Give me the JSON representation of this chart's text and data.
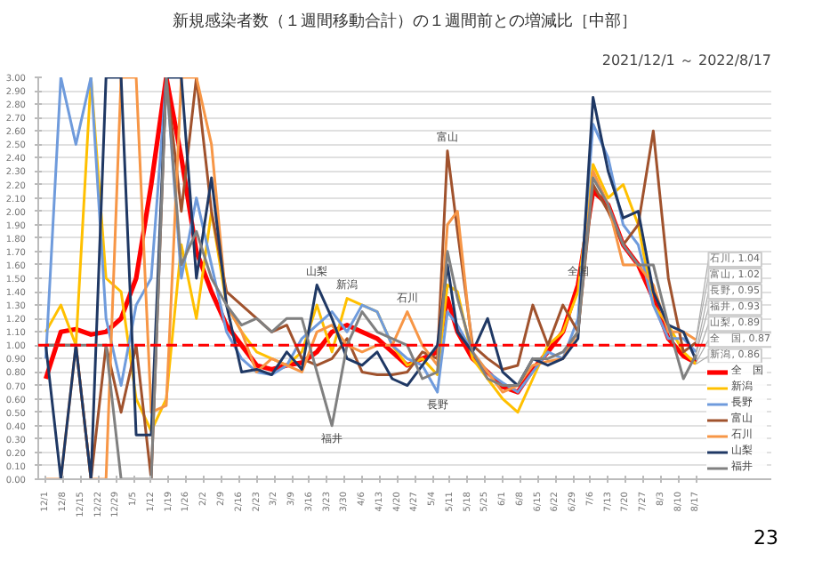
{
  "chart_data": {
    "type": "line",
    "title": "新規感染者数（１週間移動合計）の１週間前との増減比［中部］",
    "subtitle": "2021/12/1 ～ 2022/8/17",
    "x": [
      "2021-12-01",
      "2021-12-07",
      "2021-12-13",
      "2021-12-19",
      "2021-12-25",
      "2021-12-31",
      "2022-01-06",
      "2022-01-12",
      "2022-01-18",
      "2022-01-24",
      "2022-01-30",
      "2022-02-05",
      "2022-02-11",
      "2022-02-17",
      "2022-02-23",
      "2022-03-01",
      "2022-03-07",
      "2022-03-13",
      "2022-03-19",
      "2022-03-25",
      "2022-03-31",
      "2022-04-06",
      "2022-04-12",
      "2022-04-18",
      "2022-04-24",
      "2022-04-30",
      "2022-05-06",
      "2022-05-10",
      "2022-05-14",
      "2022-05-20",
      "2022-05-26",
      "2022-06-01",
      "2022-06-07",
      "2022-06-13",
      "2022-06-19",
      "2022-06-25",
      "2022-07-01",
      "2022-07-07",
      "2022-07-13",
      "2022-07-19",
      "2022-07-25",
      "2022-07-31",
      "2022-08-06",
      "2022-08-12",
      "2022-08-17"
    ],
    "series": [
      {
        "name": "全　国",
        "color": "#ff0000",
        "values": [
          0.75,
          1.1,
          1.12,
          1.08,
          1.1,
          1.2,
          1.5,
          2.2,
          3.0,
          2.4,
          1.7,
          1.4,
          1.15,
          1.0,
          0.85,
          0.82,
          0.85,
          0.87,
          0.95,
          1.1,
          1.15,
          1.1,
          1.05,
          0.95,
          0.85,
          0.9,
          0.95,
          1.35,
          1.1,
          0.9,
          0.8,
          0.69,
          0.65,
          0.82,
          0.95,
          1.1,
          1.45,
          2.15,
          2.05,
          1.75,
          1.6,
          1.35,
          1.05,
          0.92,
          0.87
        ]
      },
      {
        "name": "新潟",
        "color": "#ffc000",
        "values": [
          1.1,
          1.3,
          1.0,
          3.0,
          1.5,
          1.4,
          0.6,
          0.36,
          0.6,
          1.75,
          1.2,
          2.0,
          1.3,
          1.1,
          0.95,
          0.9,
          0.85,
          0.95,
          1.3,
          0.95,
          1.35,
          1.3,
          1.25,
          1.0,
          0.85,
          0.9,
          0.78,
          1.45,
          1.4,
          0.9,
          0.75,
          0.6,
          0.5,
          0.75,
          1.0,
          1.1,
          1.4,
          2.35,
          2.1,
          2.2,
          1.9,
          1.3,
          1.15,
          0.95,
          0.86
        ]
      },
      {
        "name": "長野",
        "color": "#6f9bdc",
        "values": [
          0.9,
          3.0,
          2.5,
          3.0,
          1.2,
          0.7,
          1.3,
          1.5,
          3.0,
          1.5,
          2.1,
          1.6,
          1.1,
          0.9,
          0.8,
          0.78,
          0.85,
          1.05,
          1.15,
          1.25,
          1.1,
          1.3,
          1.25,
          1.0,
          0.9,
          0.85,
          0.65,
          1.25,
          1.15,
          0.95,
          0.8,
          0.72,
          0.65,
          0.8,
          0.95,
          0.9,
          1.2,
          2.65,
          2.4,
          1.9,
          1.75,
          1.3,
          1.05,
          1.05,
          0.95
        ]
      },
      {
        "name": "富山",
        "color": "#a0522d",
        "values": [
          1.0,
          1.0,
          1.0,
          0.0,
          1.0,
          0.5,
          1.0,
          0.0,
          3.0,
          2.0,
          3.0,
          2.0,
          1.4,
          1.3,
          1.2,
          1.1,
          1.15,
          0.9,
          0.85,
          0.9,
          1.05,
          0.8,
          0.78,
          0.78,
          0.8,
          0.95,
          0.9,
          2.45,
          1.85,
          1.0,
          0.9,
          0.82,
          0.85,
          1.3,
          1.0,
          1.3,
          1.1,
          2.2,
          2.0,
          1.75,
          1.9,
          2.6,
          1.5,
          0.95,
          1.02
        ]
      },
      {
        "name": "石川",
        "color": "#f79646",
        "values": [
          0.0,
          0.0,
          1.0,
          0.0,
          0.0,
          3.0,
          3.0,
          0.5,
          0.55,
          3.0,
          3.0,
          2.5,
          1.3,
          1.1,
          0.8,
          0.9,
          0.85,
          0.8,
          1.1,
          1.15,
          1.0,
          0.95,
          1.0,
          1.0,
          1.25,
          1.0,
          0.85,
          1.9,
          2.0,
          0.95,
          0.8,
          0.65,
          0.7,
          0.85,
          0.88,
          0.9,
          1.1,
          2.3,
          2.05,
          1.6,
          1.6,
          1.45,
          1.1,
          1.1,
          1.04
        ]
      },
      {
        "name": "山梨",
        "color": "#1f3864",
        "values": [
          1.0,
          0.0,
          1.0,
          0.0,
          3.0,
          3.0,
          0.33,
          0.33,
          3.0,
          3.0,
          1.5,
          2.25,
          1.3,
          0.8,
          0.82,
          0.78,
          0.95,
          0.82,
          1.45,
          1.2,
          0.9,
          0.85,
          0.95,
          0.75,
          0.7,
          0.85,
          1.0,
          1.6,
          1.1,
          0.95,
          1.2,
          0.8,
          0.7,
          0.9,
          0.85,
          0.9,
          1.05,
          2.85,
          2.3,
          1.95,
          2.0,
          1.4,
          1.15,
          1.1,
          0.89
        ]
      },
      {
        "name": "福井",
        "color": "#808080",
        "values": [
          1.0,
          1.0,
          1.0,
          1.0,
          1.0,
          0.0,
          0.0,
          0.0,
          3.0,
          1.6,
          1.85,
          1.5,
          1.3,
          1.15,
          1.2,
          1.1,
          1.2,
          1.2,
          0.8,
          0.4,
          1.0,
          1.25,
          1.1,
          1.05,
          1.0,
          0.75,
          0.8,
          1.7,
          1.35,
          0.95,
          0.75,
          0.7,
          0.7,
          0.9,
          0.9,
          0.95,
          1.1,
          2.25,
          2.05,
          1.75,
          1.6,
          1.6,
          1.15,
          0.75,
          0.93
        ]
      }
    ],
    "xlim": [
      "2021-11-28",
      "2022-09-16"
    ],
    "xticks": [
      {
        "value": "2021-12-01",
        "label": "12/1"
      },
      {
        "value": "2021-12-08",
        "label": "12/8"
      },
      {
        "value": "2021-12-15",
        "label": "12/15"
      },
      {
        "value": "2021-12-22",
        "label": "12/22"
      },
      {
        "value": "2021-12-29",
        "label": "12/29"
      },
      {
        "value": "2022-01-05",
        "label": "1/5"
      },
      {
        "value": "2022-01-12",
        "label": "1/12"
      },
      {
        "value": "2022-01-19",
        "label": "1/19"
      },
      {
        "value": "2022-01-26",
        "label": "1/26"
      },
      {
        "value": "2022-02-02",
        "label": "2/2"
      },
      {
        "value": "2022-02-09",
        "label": "2/9"
      },
      {
        "value": "2022-02-16",
        "label": "2/16"
      },
      {
        "value": "2022-02-23",
        "label": "2/23"
      },
      {
        "value": "2022-03-02",
        "label": "3/2"
      },
      {
        "value": "2022-03-09",
        "label": "3/9"
      },
      {
        "value": "2022-03-16",
        "label": "3/16"
      },
      {
        "value": "2022-03-23",
        "label": "3/23"
      },
      {
        "value": "2022-03-30",
        "label": "3/30"
      },
      {
        "value": "2022-04-06",
        "label": "4/6"
      },
      {
        "value": "2022-04-13",
        "label": "4/13"
      },
      {
        "value": "2022-04-20",
        "label": "4/20"
      },
      {
        "value": "2022-04-27",
        "label": "4/27"
      },
      {
        "value": "2022-05-04",
        "label": "5/4"
      },
      {
        "value": "2022-05-11",
        "label": "5/11"
      },
      {
        "value": "2022-05-18",
        "label": "5/18"
      },
      {
        "value": "2022-05-25",
        "label": "5/25"
      },
      {
        "value": "2022-06-01",
        "label": "6/1"
      },
      {
        "value": "2022-06-08",
        "label": "6/8"
      },
      {
        "value": "2022-06-15",
        "label": "6/15"
      },
      {
        "value": "2022-06-22",
        "label": "6/22"
      },
      {
        "value": "2022-06-29",
        "label": "6/29"
      },
      {
        "value": "2022-07-06",
        "label": "7/6"
      },
      {
        "value": "2022-07-13",
        "label": "7/13"
      },
      {
        "value": "2022-07-20",
        "label": "7/20"
      },
      {
        "value": "2022-07-27",
        "label": "7/27"
      },
      {
        "value": "2022-08-03",
        "label": "8/3"
      },
      {
        "value": "2022-08-10",
        "label": "8/10"
      },
      {
        "value": "2022-08-17",
        "label": "8/17"
      }
    ],
    "ylim": [
      0,
      3.0
    ],
    "yticks": [
      {
        "value": 0,
        "label": "0.00"
      },
      {
        "value": 0.1,
        "label": "0.10"
      },
      {
        "value": 0.2,
        "label": "0.20"
      },
      {
        "value": 0.3,
        "label": "0.30"
      },
      {
        "value": 0.4,
        "label": "0.40"
      },
      {
        "value": 0.5,
        "label": "0.50"
      },
      {
        "value": 0.6,
        "label": "0.60"
      },
      {
        "value": 0.7,
        "label": "0.70"
      },
      {
        "value": 0.8,
        "label": "0.80"
      },
      {
        "value": 0.9,
        "label": "0.90"
      },
      {
        "value": 1.0,
        "label": "1.00"
      },
      {
        "value": 1.1,
        "label": "1.10"
      },
      {
        "value": 1.2,
        "label": "1.20"
      },
      {
        "value": 1.3,
        "label": "1.30"
      },
      {
        "value": 1.4,
        "label": "1.40"
      },
      {
        "value": 1.5,
        "label": "1.50"
      },
      {
        "value": 1.6,
        "label": "1.60"
      },
      {
        "value": 1.7,
        "label": "1.70"
      },
      {
        "value": 1.8,
        "label": "1.80"
      },
      {
        "value": 1.9,
        "label": "1.90"
      },
      {
        "value": 2.0,
        "label": "2.00"
      },
      {
        "value": 2.1,
        "label": "2.10"
      },
      {
        "value": 2.2,
        "label": "2.20"
      },
      {
        "value": 2.3,
        "label": "2.30"
      },
      {
        "value": 2.4,
        "label": "2.40"
      },
      {
        "value": 2.5,
        "label": "2.50"
      },
      {
        "value": 2.6,
        "label": "2.60"
      },
      {
        "value": 2.7,
        "label": "2.70"
      },
      {
        "value": 2.8,
        "label": "2.80"
      },
      {
        "value": 2.9,
        "label": "2.90"
      },
      {
        "value": 3.0,
        "label": "3.00"
      }
    ],
    "grid": "y",
    "legend": "bottom right",
    "line_style": "solid",
    "marker": "none",
    "ref_lines": [
      {
        "axis": "y",
        "value": 1.0,
        "color": "#ff0000",
        "line_style": "dashed"
      }
    ],
    "annotations": [
      {
        "text": "山梨",
        "x": "2022-03-19",
        "y": 1.45
      },
      {
        "text": "新潟",
        "x": "2022-03-31",
        "y": 1.35
      },
      {
        "text": "石川",
        "x": "2022-04-24",
        "y": 1.25
      },
      {
        "text": "富山",
        "x": "2022-05-10",
        "y": 2.45
      },
      {
        "text": "全国",
        "x": "2022-07-01",
        "y": 1.45
      },
      {
        "text": "長野",
        "x": "2022-05-06",
        "y": 0.65
      },
      {
        "text": "福井",
        "x": "2022-03-25",
        "y": 0.4
      },
      {
        "text": "石川, 1.04",
        "x": "2022-08-17",
        "y": 1.04
      },
      {
        "text": "富山, 1.02",
        "x": "2022-08-17",
        "y": 1.02
      },
      {
        "text": "長野, 0.95",
        "x": "2022-08-17",
        "y": 0.95
      },
      {
        "text": "福井, 0.93",
        "x": "2022-08-17",
        "y": 0.93
      },
      {
        "text": "山梨, 0.89",
        "x": "2022-08-17",
        "y": 0.89
      },
      {
        "text": "全　国, 0.87",
        "x": "2022-08-17",
        "y": 0.87
      },
      {
        "text": "新潟, 0.86",
        "x": "2022-08-17",
        "y": 0.86
      },
      "23"
    ]
  }
}
